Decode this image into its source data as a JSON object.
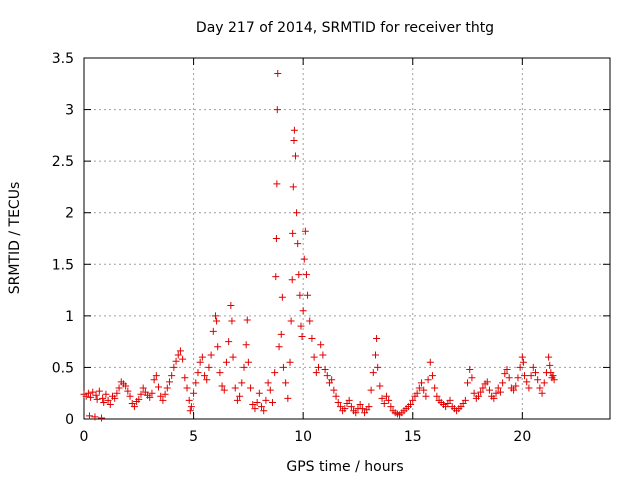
{
  "chart_data": {
    "type": "scatter",
    "title": "Day 217 of 2014, SRMTID for receiver thtg",
    "xlabel": "GPS time / hours",
    "ylabel": "SRMTID / TECUs",
    "xlim": [
      0,
      24
    ],
    "ylim": [
      0,
      3.5
    ],
    "xticks": [
      0,
      5,
      10,
      15,
      20
    ],
    "xtick_labels": [
      "0",
      "5",
      "10",
      "15",
      "20"
    ],
    "yticks": [
      0,
      0.5,
      1,
      1.5,
      2,
      2.5,
      3,
      3.5
    ],
    "ytick_labels": [
      "0",
      "0.5",
      "1",
      "1.5",
      "2",
      "2.5",
      "3",
      "3.5"
    ],
    "grid": true,
    "marker": "+",
    "series": [
      {
        "name": "SRMTID",
        "color": "#e00000",
        "points": [
          [
            0.0,
            0.24
          ],
          [
            0.1,
            0.22
          ],
          [
            0.2,
            0.25
          ],
          [
            0.25,
            0.03
          ],
          [
            0.3,
            0.21
          ],
          [
            0.4,
            0.26
          ],
          [
            0.5,
            0.02
          ],
          [
            0.55,
            0.23
          ],
          [
            0.6,
            0.19
          ],
          [
            0.7,
            0.27
          ],
          [
            0.8,
            0.01
          ],
          [
            0.85,
            0.2
          ],
          [
            0.9,
            0.16
          ],
          [
            1.0,
            0.24
          ],
          [
            1.1,
            0.18
          ],
          [
            1.2,
            0.14
          ],
          [
            1.3,
            0.22
          ],
          [
            1.4,
            0.2
          ],
          [
            1.5,
            0.25
          ],
          [
            1.6,
            0.3
          ],
          [
            1.7,
            0.36
          ],
          [
            1.8,
            0.34
          ],
          [
            1.9,
            0.32
          ],
          [
            2.0,
            0.27
          ],
          [
            2.1,
            0.22
          ],
          [
            2.2,
            0.15
          ],
          [
            2.3,
            0.12
          ],
          [
            2.4,
            0.17
          ],
          [
            2.5,
            0.19
          ],
          [
            2.6,
            0.24
          ],
          [
            2.7,
            0.3
          ],
          [
            2.8,
            0.26
          ],
          [
            2.9,
            0.23
          ],
          [
            3.0,
            0.21
          ],
          [
            3.1,
            0.25
          ],
          [
            3.2,
            0.38
          ],
          [
            3.3,
            0.42
          ],
          [
            3.4,
            0.31
          ],
          [
            3.5,
            0.22
          ],
          [
            3.6,
            0.18
          ],
          [
            3.7,
            0.24
          ],
          [
            3.8,
            0.3
          ],
          [
            3.9,
            0.36
          ],
          [
            4.0,
            0.42
          ],
          [
            4.1,
            0.5
          ],
          [
            4.2,
            0.56
          ],
          [
            4.3,
            0.62
          ],
          [
            4.4,
            0.66
          ],
          [
            4.5,
            0.58
          ],
          [
            4.6,
            0.4
          ],
          [
            4.7,
            0.3
          ],
          [
            4.8,
            0.18
          ],
          [
            4.85,
            0.08
          ],
          [
            4.9,
            0.12
          ],
          [
            5.0,
            0.25
          ],
          [
            5.1,
            0.35
          ],
          [
            5.2,
            0.45
          ],
          [
            5.3,
            0.55
          ],
          [
            5.4,
            0.6
          ],
          [
            5.5,
            0.42
          ],
          [
            5.6,
            0.38
          ],
          [
            5.7,
            0.5
          ],
          [
            5.8,
            0.62
          ],
          [
            5.9,
            0.85
          ],
          [
            6.0,
            1.0
          ],
          [
            6.05,
            0.95
          ],
          [
            6.1,
            0.7
          ],
          [
            6.2,
            0.45
          ],
          [
            6.3,
            0.32
          ],
          [
            6.4,
            0.28
          ],
          [
            6.5,
            0.55
          ],
          [
            6.6,
            0.75
          ],
          [
            6.7,
            1.1
          ],
          [
            6.75,
            0.95
          ],
          [
            6.8,
            0.6
          ],
          [
            6.9,
            0.3
          ],
          [
            7.0,
            0.18
          ],
          [
            7.1,
            0.22
          ],
          [
            7.2,
            0.35
          ],
          [
            7.3,
            0.5
          ],
          [
            7.4,
            0.72
          ],
          [
            7.45,
            0.96
          ],
          [
            7.5,
            0.55
          ],
          [
            7.6,
            0.3
          ],
          [
            7.7,
            0.14
          ],
          [
            7.8,
            0.1
          ],
          [
            7.9,
            0.16
          ],
          [
            8.0,
            0.25
          ],
          [
            8.1,
            0.12
          ],
          [
            8.2,
            0.08
          ],
          [
            8.3,
            0.18
          ],
          [
            8.4,
            0.35
          ],
          [
            8.5,
            0.28
          ],
          [
            8.6,
            0.16
          ],
          [
            8.7,
            0.45
          ],
          [
            8.75,
            1.38
          ],
          [
            8.78,
            1.75
          ],
          [
            8.8,
            2.28
          ],
          [
            8.82,
            3.0
          ],
          [
            8.84,
            3.35
          ],
          [
            8.9,
            0.7
          ],
          [
            9.0,
            0.82
          ],
          [
            9.05,
            1.18
          ],
          [
            9.1,
            0.5
          ],
          [
            9.2,
            0.35
          ],
          [
            9.3,
            0.2
          ],
          [
            9.4,
            0.55
          ],
          [
            9.45,
            0.95
          ],
          [
            9.5,
            1.35
          ],
          [
            9.52,
            1.8
          ],
          [
            9.55,
            2.25
          ],
          [
            9.58,
            2.7
          ],
          [
            9.6,
            2.8
          ],
          [
            9.65,
            2.55
          ],
          [
            9.7,
            2.0
          ],
          [
            9.75,
            1.7
          ],
          [
            9.8,
            1.4
          ],
          [
            9.85,
            1.2
          ],
          [
            9.9,
            0.9
          ],
          [
            9.95,
            0.8
          ],
          [
            10.0,
            1.05
          ],
          [
            10.05,
            1.55
          ],
          [
            10.1,
            1.82
          ],
          [
            10.15,
            1.4
          ],
          [
            10.2,
            1.2
          ],
          [
            10.3,
            0.95
          ],
          [
            10.4,
            0.78
          ],
          [
            10.5,
            0.6
          ],
          [
            10.6,
            0.45
          ],
          [
            10.7,
            0.5
          ],
          [
            10.8,
            0.72
          ],
          [
            10.9,
            0.62
          ],
          [
            11.0,
            0.48
          ],
          [
            11.1,
            0.42
          ],
          [
            11.2,
            0.35
          ],
          [
            11.3,
            0.38
          ],
          [
            11.4,
            0.28
          ],
          [
            11.5,
            0.22
          ],
          [
            11.6,
            0.16
          ],
          [
            11.7,
            0.12
          ],
          [
            11.8,
            0.08
          ],
          [
            11.9,
            0.1
          ],
          [
            12.0,
            0.15
          ],
          [
            12.1,
            0.18
          ],
          [
            12.2,
            0.12
          ],
          [
            12.3,
            0.08
          ],
          [
            12.4,
            0.06
          ],
          [
            12.5,
            0.1
          ],
          [
            12.6,
            0.14
          ],
          [
            12.7,
            0.1
          ],
          [
            12.8,
            0.06
          ],
          [
            12.9,
            0.09
          ],
          [
            13.0,
            0.12
          ],
          [
            13.1,
            0.28
          ],
          [
            13.2,
            0.45
          ],
          [
            13.3,
            0.62
          ],
          [
            13.35,
            0.78
          ],
          [
            13.4,
            0.5
          ],
          [
            13.5,
            0.32
          ],
          [
            13.6,
            0.2
          ],
          [
            13.7,
            0.15
          ],
          [
            13.8,
            0.22
          ],
          [
            13.9,
            0.18
          ],
          [
            14.0,
            0.12
          ],
          [
            14.1,
            0.08
          ],
          [
            14.2,
            0.06
          ],
          [
            14.3,
            0.05
          ],
          [
            14.4,
            0.04
          ],
          [
            14.5,
            0.06
          ],
          [
            14.6,
            0.08
          ],
          [
            14.7,
            0.1
          ],
          [
            14.8,
            0.12
          ],
          [
            14.9,
            0.14
          ],
          [
            15.0,
            0.18
          ],
          [
            15.1,
            0.22
          ],
          [
            15.2,
            0.25
          ],
          [
            15.3,
            0.3
          ],
          [
            15.4,
            0.35
          ],
          [
            15.5,
            0.28
          ],
          [
            15.6,
            0.22
          ],
          [
            15.7,
            0.38
          ],
          [
            15.8,
            0.55
          ],
          [
            15.9,
            0.42
          ],
          [
            16.0,
            0.3
          ],
          [
            16.1,
            0.22
          ],
          [
            16.2,
            0.18
          ],
          [
            16.3,
            0.16
          ],
          [
            16.4,
            0.14
          ],
          [
            16.5,
            0.12
          ],
          [
            16.6,
            0.15
          ],
          [
            16.7,
            0.18
          ],
          [
            16.8,
            0.12
          ],
          [
            16.9,
            0.1
          ],
          [
            17.0,
            0.08
          ],
          [
            17.1,
            0.1
          ],
          [
            17.2,
            0.12
          ],
          [
            17.3,
            0.15
          ],
          [
            17.4,
            0.18
          ],
          [
            17.5,
            0.35
          ],
          [
            17.6,
            0.48
          ],
          [
            17.7,
            0.4
          ],
          [
            17.8,
            0.25
          ],
          [
            17.9,
            0.2
          ],
          [
            18.0,
            0.22
          ],
          [
            18.1,
            0.26
          ],
          [
            18.2,
            0.3
          ],
          [
            18.3,
            0.34
          ],
          [
            18.4,
            0.36
          ],
          [
            18.5,
            0.28
          ],
          [
            18.6,
            0.22
          ],
          [
            18.7,
            0.2
          ],
          [
            18.8,
            0.25
          ],
          [
            18.9,
            0.3
          ],
          [
            19.0,
            0.26
          ],
          [
            19.1,
            0.35
          ],
          [
            19.2,
            0.44
          ],
          [
            19.3,
            0.48
          ],
          [
            19.4,
            0.4
          ],
          [
            19.5,
            0.3
          ],
          [
            19.6,
            0.28
          ],
          [
            19.7,
            0.32
          ],
          [
            19.8,
            0.4
          ],
          [
            19.9,
            0.5
          ],
          [
            20.0,
            0.6
          ],
          [
            20.05,
            0.55
          ],
          [
            20.1,
            0.42
          ],
          [
            20.2,
            0.36
          ],
          [
            20.3,
            0.3
          ],
          [
            20.4,
            0.42
          ],
          [
            20.5,
            0.5
          ],
          [
            20.6,
            0.45
          ],
          [
            20.7,
            0.38
          ],
          [
            20.8,
            0.3
          ],
          [
            20.9,
            0.25
          ],
          [
            21.0,
            0.35
          ],
          [
            21.1,
            0.45
          ],
          [
            21.2,
            0.6
          ],
          [
            21.25,
            0.52
          ],
          [
            21.3,
            0.45
          ],
          [
            21.35,
            0.4
          ],
          [
            21.4,
            0.42
          ],
          [
            21.45,
            0.38
          ]
        ]
      }
    ]
  }
}
